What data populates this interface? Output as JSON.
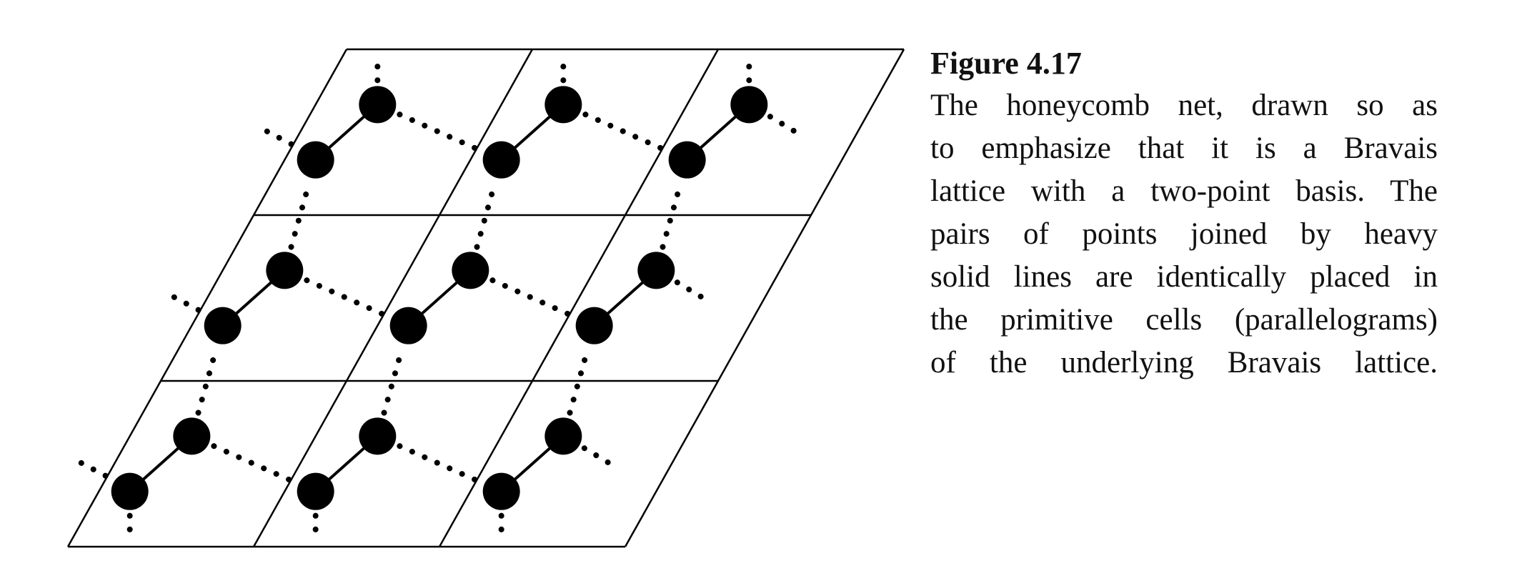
{
  "caption": {
    "label": "Figure 4.17",
    "lines": [
      "The honeycomb net, drawn so as",
      "to emphasize that it is a Bravais",
      "lattice with a two-point basis. The",
      "pairs of points joined by heavy",
      "solid lines are identically placed in",
      "the primitive cells (parallelograms)",
      "of the underlying Bravais lattice."
    ]
  },
  "lattice": {
    "rows": 3,
    "cols": 3,
    "line_color": "#000000",
    "point_color": "#000000"
  }
}
